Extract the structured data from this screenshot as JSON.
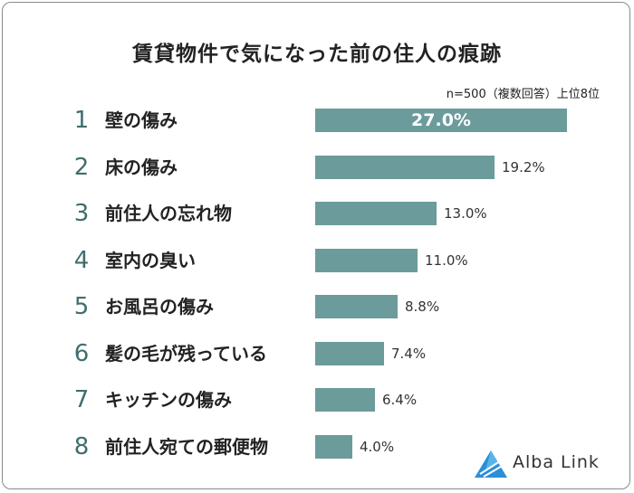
{
  "title": "賃貸物件で気になった前の住人の痕跡",
  "note": "n=500（複数回答）上位8位",
  "brand": {
    "name": "Alba Link",
    "icon": "alba-link-logo-icon",
    "color": "#2a8fd6"
  },
  "colors": {
    "bar": "#6b9b9a",
    "rank": "#3f6e6d"
  },
  "chart_data": {
    "type": "bar",
    "orientation": "horizontal",
    "title": "賃貸物件で気になった前の住人の痕跡",
    "xlabel": "",
    "ylabel": "",
    "xlim": [
      0,
      27.0
    ],
    "ranks": [
      "1",
      "2",
      "3",
      "4",
      "5",
      "6",
      "7",
      "8"
    ],
    "categories": [
      "壁の傷み",
      "床の傷み",
      "前住人の忘れ物",
      "室内の臭い",
      "お風呂の傷み",
      "髪の毛が残っている",
      "キッチンの傷み",
      "前住人宛ての郵便物"
    ],
    "values": [
      27.0,
      19.2,
      13.0,
      11.0,
      8.8,
      7.4,
      6.4,
      4.0
    ],
    "value_labels": [
      "27.0%",
      "19.2%",
      "13.0%",
      "11.0%",
      "8.8%",
      "7.4%",
      "6.4%",
      "4.0%"
    ]
  }
}
